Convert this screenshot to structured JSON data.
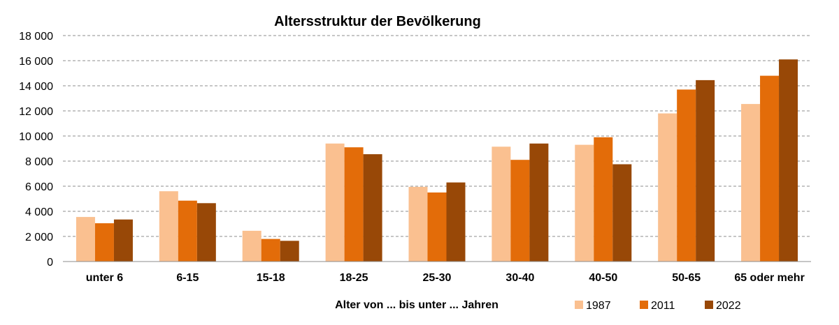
{
  "chart_data": {
    "type": "bar",
    "title": "Altersstruktur der Bevölkerung",
    "xlabel": "Alter von ... bis unter ... Jahren",
    "ylabel": "",
    "ylim": [
      0,
      18000
    ],
    "yticks": [
      0,
      2000,
      4000,
      6000,
      8000,
      10000,
      12000,
      14000,
      16000,
      18000
    ],
    "ytick_labels": [
      "0",
      "2 000",
      "4 000",
      "6 000",
      "8 000",
      "10 000",
      "12 000",
      "14 000",
      "16 000",
      "18 000"
    ],
    "grid": true,
    "legend_position": "bottom-right",
    "categories": [
      "unter 6",
      "6-15",
      "15-18",
      "18-25",
      "25-30",
      "30-40",
      "40-50",
      "50-65",
      "65 oder mehr"
    ],
    "series": [
      {
        "name": "1987",
        "color": "#fac090",
        "values": [
          3550,
          5600,
          2450,
          9400,
          5950,
          9150,
          9300,
          11800,
          12550
        ]
      },
      {
        "name": "2011",
        "color": "#e36c09",
        "values": [
          3050,
          4850,
          1800,
          9100,
          5500,
          8100,
          9900,
          13700,
          14800
        ]
      },
      {
        "name": "2022",
        "color": "#984807",
        "values": [
          3350,
          4650,
          1650,
          8550,
          6300,
          9400,
          7750,
          14450,
          16100
        ]
      }
    ]
  }
}
